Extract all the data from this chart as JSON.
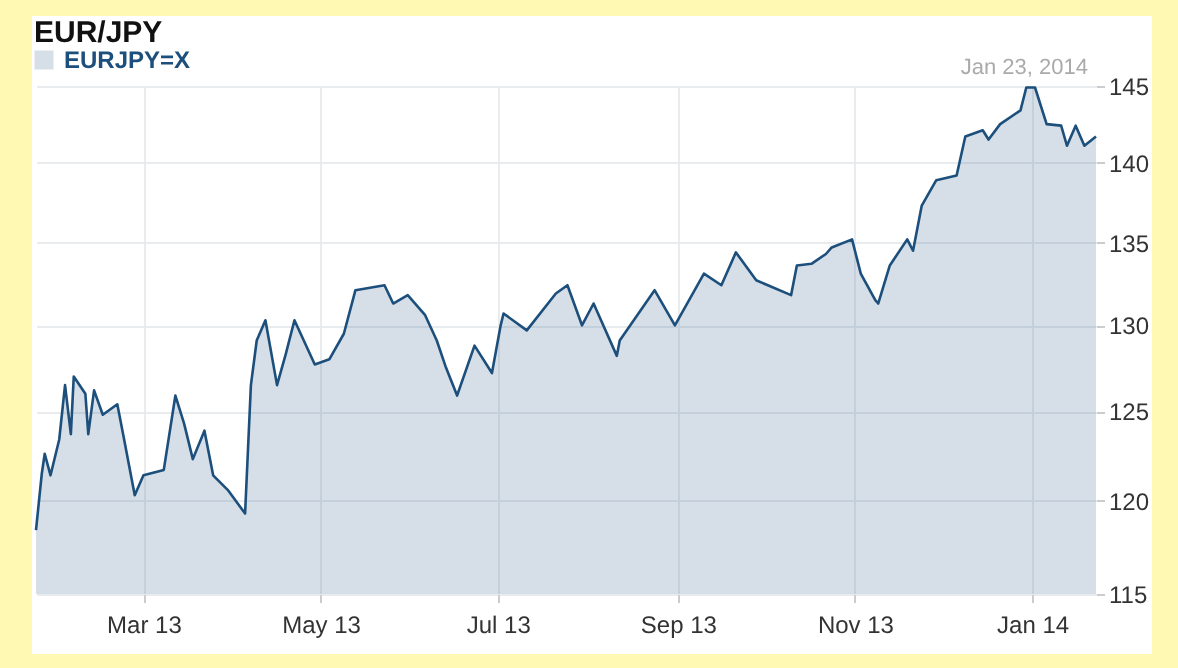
{
  "chart_data": {
    "type": "area",
    "title": "EUR/JPY",
    "annotations": [
      "Jan 23, 2014"
    ],
    "legend": "top left",
    "grid": true,
    "log": true,
    "x": [
      "2013-01-23",
      "2013-01-25",
      "2013-01-26",
      "2013-01-28",
      "2013-01-31",
      "2013-02-02",
      "2013-02-04",
      "2013-02-05",
      "2013-02-09",
      "2013-02-10",
      "2013-02-12",
      "2013-02-15",
      "2013-02-20",
      "2013-02-22",
      "2013-02-26",
      "2013-03-01",
      "2013-03-08",
      "2013-03-12",
      "2013-03-15",
      "2013-03-18",
      "2013-03-22",
      "2013-03-25",
      "2013-03-30",
      "2013-04-05",
      "2013-04-07",
      "2013-04-09",
      "2013-04-12",
      "2013-04-16",
      "2013-04-19",
      "2013-04-22",
      "2013-04-29",
      "2013-05-04",
      "2013-05-09",
      "2013-05-13",
      "2013-05-23",
      "2013-05-26",
      "2013-05-31",
      "2013-06-06",
      "2013-06-10",
      "2013-06-13",
      "2013-06-17",
      "2013-06-23",
      "2013-06-29",
      "2013-07-02",
      "2013-07-03",
      "2013-07-11",
      "2013-07-21",
      "2013-07-25",
      "2013-07-30",
      "2013-08-03",
      "2013-08-11",
      "2013-08-12",
      "2013-08-24",
      "2013-08-31",
      "2013-09-10",
      "2013-09-16",
      "2013-09-21",
      "2013-09-28",
      "2013-10-02",
      "2013-10-10",
      "2013-10-12",
      "2013-10-17",
      "2013-10-22",
      "2013-10-24",
      "2013-10-31",
      "2013-11-03",
      "2013-11-08",
      "2013-11-09",
      "2013-11-13",
      "2013-11-19",
      "2013-11-21",
      "2013-11-24",
      "2013-11-29",
      "2013-12-06",
      "2013-12-09",
      "2013-12-15",
      "2013-12-17",
      "2013-12-21",
      "2013-12-28",
      "2013-12-30",
      "2014-01-02",
      "2014-01-06",
      "2014-01-11",
      "2014-01-13",
      "2014-01-16",
      "2014-01-19",
      "2014-01-23"
    ],
    "series": [
      {
        "name": "EURJPY=X",
        "color": "#1d4f7c",
        "values": [
          118.4,
          121.5,
          122.6,
          121.4,
          123.4,
          126.5,
          123.7,
          127.0,
          126.0,
          123.7,
          126.2,
          124.8,
          125.4,
          123.7,
          120.3,
          121.4,
          121.7,
          125.9,
          124.3,
          122.3,
          123.9,
          121.4,
          120.6,
          119.3,
          126.5,
          129.1,
          130.3,
          126.5,
          128.3,
          130.3,
          127.7,
          128.0,
          129.5,
          132.1,
          132.4,
          131.3,
          131.8,
          130.6,
          129.1,
          127.6,
          125.9,
          128.8,
          127.2,
          130.0,
          130.7,
          129.7,
          131.9,
          132.4,
          130.0,
          131.3,
          128.2,
          129.1,
          132.1,
          130.0,
          133.1,
          132.4,
          134.4,
          132.7,
          132.4,
          131.8,
          133.6,
          133.7,
          134.3,
          134.7,
          135.2,
          133.1,
          131.5,
          131.3,
          133.6,
          135.2,
          134.5,
          137.3,
          138.9,
          139.2,
          141.7,
          142.1,
          141.5,
          142.5,
          143.4,
          144.9,
          144.9,
          142.5,
          142.4,
          141.1,
          142.4,
          141.1,
          141.7
        ]
      }
    ],
    "xlim": [
      "2013-01-23",
      "2014-01-23"
    ],
    "xticks": [
      {
        "value": "2013-03-01",
        "label": "Mar 13"
      },
      {
        "value": "2013-05-01",
        "label": "May 13"
      },
      {
        "value": "2013-07-01",
        "label": "Jul 13"
      },
      {
        "value": "2013-09-01",
        "label": "Sep 13"
      },
      {
        "value": "2013-11-01",
        "label": "Nov 13"
      },
      {
        "value": "2014-01-01",
        "label": "Jan 14"
      }
    ],
    "ylim": [
      115,
      145
    ],
    "yticks": [
      115,
      120,
      125,
      130,
      135,
      140,
      145
    ]
  }
}
